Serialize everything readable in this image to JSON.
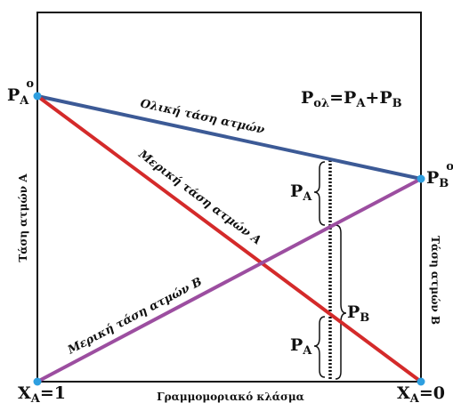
{
  "diagram": {
    "corner_labels": {
      "pa0": {
        "main": "P",
        "sub": "A",
        "sup": "o"
      },
      "pb0": {
        "main": "P",
        "sub": "B",
        "sup": "o"
      },
      "xa1": {
        "main": "X",
        "sub": "A",
        "rest": "=1"
      },
      "xa0": {
        "main": "X",
        "sub": "A",
        "rest": "=0"
      }
    },
    "equation": {
      "lhs": "P",
      "lhs_sub": "ολ",
      "eq": "=P",
      "a_sub": "A",
      "plus": "+P",
      "b_sub": "B"
    },
    "line_labels": {
      "total": "Ολική τάση ατμών",
      "partial_a": "Μερική τάση ατμών Α",
      "partial_b": "Μερική τάση ατμών Β"
    },
    "brace_labels": {
      "upper_pa": {
        "main": "P",
        "sub": "A"
      },
      "pb": {
        "main": "P",
        "sub": "B"
      },
      "lower_pa": {
        "main": "P",
        "sub": "A"
      }
    },
    "axes": {
      "x_label": "Γραμμομοριακό κλάσμα",
      "y_left": "Τάση ατμών Α",
      "y_right": "Τάση ατμών Β"
    },
    "colors": {
      "total_line": "#3c5a96",
      "partial_a_line": "#d42a2a",
      "partial_b_line": "#9c4ea0",
      "points": "#2e9fe0",
      "frame": "#111111"
    }
  }
}
